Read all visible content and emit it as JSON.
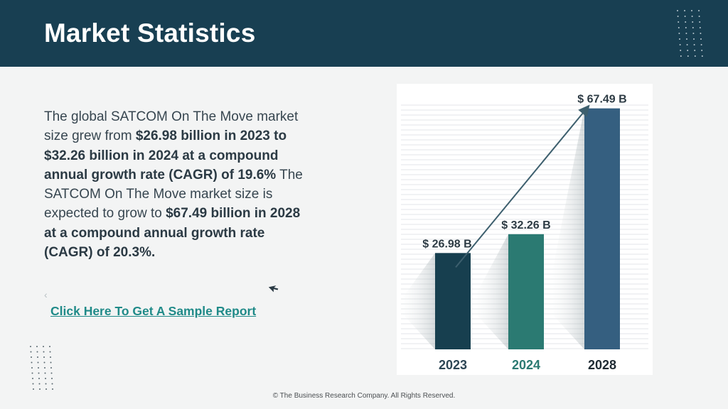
{
  "header": {
    "title": "Market Statistics"
  },
  "body": {
    "segments": [
      {
        "text": "The global SATCOM On The Move market size grew from ",
        "bold": false
      },
      {
        "text": "$26.98 billion in 2023 to $32.26 billion in 2024 at a compound annual growth rate (CAGR) of 19.6%",
        "bold": true
      },
      {
        "text": " The SATCOM On The Move market size is expected to grow to ",
        "bold": false
      },
      {
        "text": "$67.49 billion in 2028 at a compound annual growth rate (CAGR) of 20.3%.",
        "bold": true
      }
    ],
    "small_mark": "‹"
  },
  "link": {
    "label": "Click Here To Get A Sample Report"
  },
  "footer": {
    "text": "© The Business Research Company. All Rights Reserved."
  },
  "colors": {
    "header_bg": "#183f52",
    "bar_2023": "#173f4f",
    "bar_2024": "#2b7a72",
    "bar_2028": "#355f80",
    "link": "#1f8a88"
  },
  "chart_data": {
    "type": "bar",
    "categories": [
      "2023",
      "2024",
      "2028"
    ],
    "values": [
      26.98,
      32.26,
      67.49
    ],
    "value_labels": [
      "$ 26.98 B",
      "$ 32.26 B",
      "$ 67.49 B"
    ],
    "category_colors": [
      "#173f4f",
      "#2b7a72",
      "#355f80"
    ],
    "title": "",
    "xlabel": "",
    "ylabel": "",
    "ylim": [
      0,
      70
    ],
    "grid": true,
    "trend_arrow": true
  }
}
